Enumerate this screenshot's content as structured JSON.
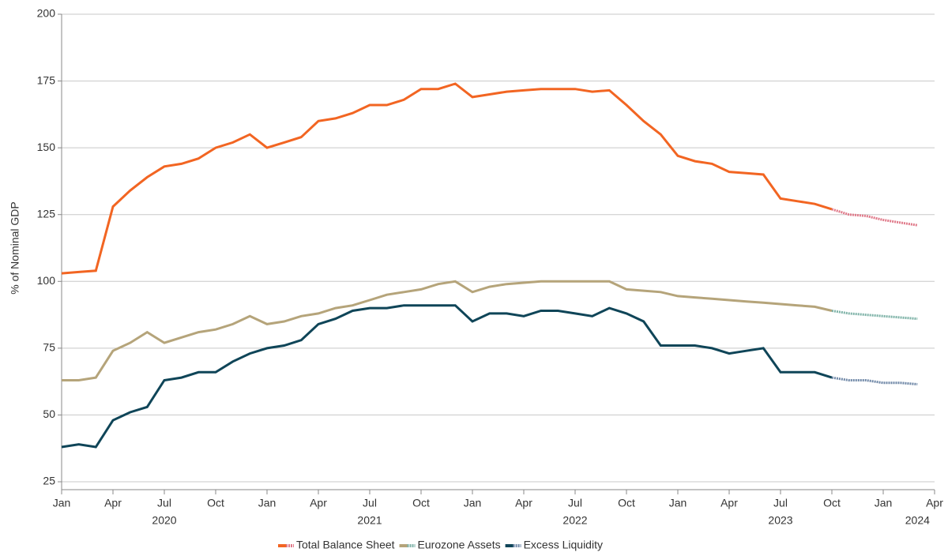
{
  "chart_data": {
    "type": "line",
    "y_label": "% of Nominal GDP",
    "x": [
      "2020-01",
      "2020-02",
      "2020-03",
      "2020-04",
      "2020-05",
      "2020-06",
      "2020-07",
      "2020-08",
      "2020-09",
      "2020-10",
      "2020-11",
      "2020-12",
      "2021-01",
      "2021-02",
      "2021-03",
      "2021-04",
      "2021-05",
      "2021-06",
      "2021-07",
      "2021-08",
      "2021-09",
      "2021-10",
      "2021-11",
      "2021-12",
      "2022-01",
      "2022-02",
      "2022-03",
      "2022-04",
      "2022-05",
      "2022-06",
      "2022-07",
      "2022-08",
      "2022-09",
      "2022-10",
      "2022-11",
      "2022-12",
      "2023-01",
      "2023-02",
      "2023-03",
      "2023-04",
      "2023-05",
      "2023-06",
      "2023-07",
      "2023-08",
      "2023-09",
      "2023-10",
      "2023-11",
      "2023-12",
      "2024-01",
      "2024-02",
      "2024-03"
    ],
    "projection_from": "2023-10",
    "series": [
      {
        "name": "Total Balance Sheet",
        "color": "#f26522",
        "projection_color": "#e07a8a",
        "values": [
          103,
          103.5,
          104,
          128,
          134,
          139,
          143,
          144,
          146,
          150,
          152,
          155,
          150,
          152,
          154,
          160,
          161,
          163,
          166,
          166,
          168,
          172,
          172,
          174,
          169,
          170,
          171,
          171.5,
          172,
          172,
          172,
          171,
          171.5,
          166,
          160,
          155,
          147,
          145,
          144,
          141,
          140.5,
          140,
          131,
          130,
          129,
          127,
          125,
          124.5,
          123,
          122,
          121
        ]
      },
      {
        "name": "Eurozone Assets",
        "color": "#b5a47a",
        "projection_color": "#7fb3a8",
        "values": [
          63,
          63,
          64,
          74,
          77,
          81,
          77,
          79,
          81,
          82,
          84,
          87,
          84,
          85,
          87,
          88,
          90,
          91,
          93,
          95,
          96,
          97,
          99,
          100,
          96,
          98,
          99,
          99.5,
          100,
          100,
          100,
          100,
          100,
          97,
          96.5,
          96,
          94.5,
          94,
          93.5,
          93,
          92.5,
          92,
          91.5,
          91,
          90.5,
          89,
          88,
          87.5,
          87,
          86.5,
          86
        ]
      },
      {
        "name": "Excess Liquidity",
        "color": "#0f4558",
        "projection_color": "#7189a8",
        "values": [
          38,
          39,
          38,
          48,
          51,
          53,
          63,
          64,
          66,
          66,
          70,
          73,
          75,
          76,
          78,
          84,
          86,
          89,
          90,
          90,
          91,
          91,
          91,
          91,
          85,
          88,
          88,
          87,
          89,
          89,
          88,
          87,
          90,
          88,
          85,
          76,
          76,
          76,
          75,
          73,
          74,
          75,
          66,
          66,
          66,
          64,
          63,
          63,
          62,
          62,
          61.5
        ]
      }
    ],
    "xlim": [
      "2020-01",
      "2024-04"
    ],
    "xticks": [
      {
        "value": "2020-01",
        "label": "Jan"
      },
      {
        "value": "2020-04",
        "label": "Apr"
      },
      {
        "value": "2020-07",
        "label": "Jul"
      },
      {
        "value": "2020-10",
        "label": "Oct"
      },
      {
        "value": "2021-01",
        "label": "Jan"
      },
      {
        "value": "2021-04",
        "label": "Apr"
      },
      {
        "value": "2021-07",
        "label": "Jul"
      },
      {
        "value": "2021-10",
        "label": "Oct"
      },
      {
        "value": "2022-01",
        "label": "Jan"
      },
      {
        "value": "2022-04",
        "label": "Apr"
      },
      {
        "value": "2022-07",
        "label": "Jul"
      },
      {
        "value": "2022-10",
        "label": "Oct"
      },
      {
        "value": "2023-01",
        "label": "Jan"
      },
      {
        "value": "2023-04",
        "label": "Apr"
      },
      {
        "value": "2023-07",
        "label": "Jul"
      },
      {
        "value": "2023-10",
        "label": "Oct"
      },
      {
        "value": "2024-01",
        "label": "Jan"
      },
      {
        "value": "2024-04",
        "label": "Apr"
      }
    ],
    "year_labels": [
      {
        "value": "2020-07",
        "label": "2020"
      },
      {
        "value": "2021-07",
        "label": "2021"
      },
      {
        "value": "2022-07",
        "label": "2022"
      },
      {
        "value": "2023-07",
        "label": "2023"
      },
      {
        "value": "2024-03",
        "label": "2024"
      }
    ],
    "ylim": [
      25,
      200
    ],
    "yticks": [
      25,
      50,
      75,
      100,
      125,
      150,
      175,
      200
    ],
    "grid": true
  }
}
